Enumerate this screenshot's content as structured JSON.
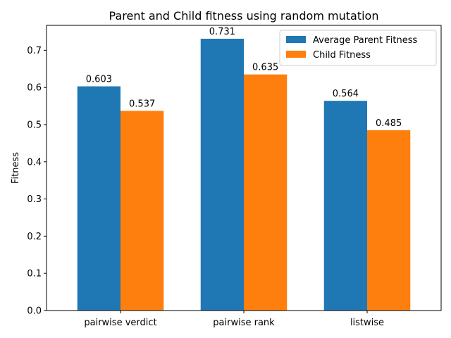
{
  "chart_data": {
    "type": "bar",
    "title": "Parent and Child fitness using random mutation",
    "xlabel": "",
    "ylabel": "Fitness",
    "categories": [
      "pairwise verdict",
      "pairwise rank",
      "listwise"
    ],
    "series": [
      {
        "name": "Average Parent Fitness",
        "values": [
          0.603,
          0.731,
          0.564
        ],
        "color": "#1f77b4"
      },
      {
        "name": "Child Fitness",
        "values": [
          0.537,
          0.635,
          0.485
        ],
        "color": "#ff7f0e"
      }
    ],
    "data_labels": [
      [
        "0.603",
        "0.731",
        "0.564"
      ],
      [
        "0.537",
        "0.635",
        "0.485"
      ]
    ],
    "ylim": [
      0,
      0.767
    ],
    "yticks": [
      0.0,
      0.1,
      0.2,
      0.3,
      0.4,
      0.5,
      0.6,
      0.7
    ],
    "ytick_labels": [
      "0.0",
      "0.1",
      "0.2",
      "0.3",
      "0.4",
      "0.5",
      "0.6",
      "0.7"
    ],
    "grid": false,
    "legend_position": "top-right"
  }
}
